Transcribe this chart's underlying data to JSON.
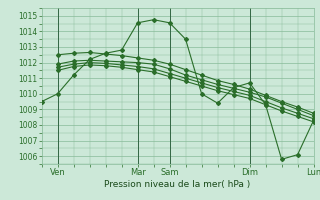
{
  "title": "",
  "xlabel": "Pression niveau de la mer( hPa )",
  "bg_color": "#cce8d8",
  "grid_color": "#88bb99",
  "line_color": "#2a6e2a",
  "xlim": [
    0,
    8.5
  ],
  "ylim": [
    1005.5,
    1015.5
  ],
  "yticks": [
    1006,
    1007,
    1008,
    1009,
    1010,
    1011,
    1012,
    1013,
    1014,
    1015
  ],
  "xtick_positions": [
    0.5,
    3.0,
    4.0,
    6.5,
    8.5
  ],
  "xtick_labels": [
    "Ven",
    "Mar",
    "Sam",
    "Dim",
    "Lun"
  ],
  "vlines": [
    0.5,
    3.0,
    4.0,
    6.5,
    8.5
  ],
  "series": [
    {
      "name": "s1_peak",
      "x": [
        0.0,
        0.5,
        1.0,
        1.5,
        2.0,
        2.5,
        3.0,
        3.5,
        4.0,
        4.5,
        5.0,
        5.5,
        6.0,
        6.5,
        7.0,
        7.5,
        8.0,
        8.5
      ],
      "y": [
        1009.5,
        1010.0,
        1011.2,
        1012.2,
        1012.6,
        1012.8,
        1014.55,
        1014.75,
        1014.55,
        1013.5,
        1010.0,
        1009.4,
        1010.4,
        1010.7,
        1009.3,
        1005.8,
        1006.1,
        1008.3
      ]
    },
    {
      "name": "s2_flat",
      "x": [
        0.5,
        1.0,
        1.5,
        2.0,
        2.5,
        3.0,
        3.5,
        4.0,
        4.5,
        5.0,
        5.5,
        6.0,
        6.5,
        7.0,
        7.5,
        8.0,
        8.5
      ],
      "y": [
        1011.9,
        1012.1,
        1012.15,
        1012.1,
        1012.05,
        1012.0,
        1011.9,
        1011.6,
        1011.2,
        1010.9,
        1010.6,
        1010.35,
        1010.1,
        1009.8,
        1009.4,
        1009.0,
        1008.6
      ]
    },
    {
      "name": "s3_flat2",
      "x": [
        0.5,
        1.0,
        1.5,
        2.0,
        2.5,
        3.0,
        3.5,
        4.0,
        4.5,
        5.0,
        5.5,
        6.0,
        6.5,
        7.0,
        7.5,
        8.0,
        8.5
      ],
      "y": [
        1011.7,
        1011.9,
        1012.0,
        1011.95,
        1011.85,
        1011.75,
        1011.6,
        1011.3,
        1011.0,
        1010.7,
        1010.4,
        1010.15,
        1009.9,
        1009.5,
        1009.1,
        1008.75,
        1008.4
      ]
    },
    {
      "name": "s4_flat3",
      "x": [
        0.5,
        1.0,
        1.5,
        2.0,
        2.5,
        3.0,
        3.5,
        4.0,
        4.5,
        5.0,
        5.5,
        6.0,
        6.5,
        7.0,
        7.5,
        8.0,
        8.5
      ],
      "y": [
        1011.5,
        1011.75,
        1011.85,
        1011.8,
        1011.7,
        1011.55,
        1011.4,
        1011.1,
        1010.8,
        1010.5,
        1010.2,
        1009.95,
        1009.7,
        1009.3,
        1008.9,
        1008.55,
        1008.2
      ]
    },
    {
      "name": "s5_upper",
      "x": [
        0.5,
        1.0,
        1.5,
        2.0,
        2.5,
        3.0,
        3.5,
        4.0,
        4.5,
        5.0,
        5.5,
        6.0,
        6.5,
        7.0,
        7.5,
        8.0,
        8.5
      ],
      "y": [
        1012.5,
        1012.6,
        1012.65,
        1012.55,
        1012.45,
        1012.3,
        1012.15,
        1011.9,
        1011.55,
        1011.2,
        1010.85,
        1010.6,
        1010.3,
        1009.9,
        1009.5,
        1009.15,
        1008.75
      ]
    }
  ]
}
